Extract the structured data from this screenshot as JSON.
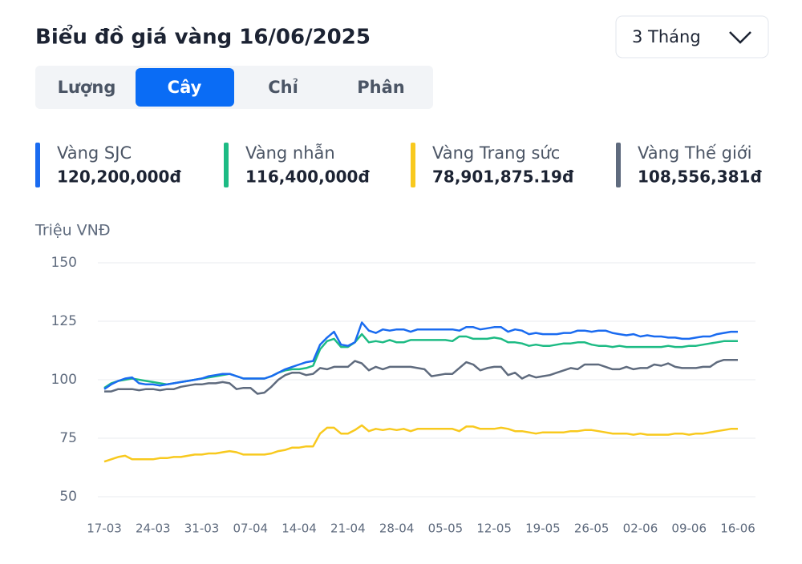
{
  "controls": {
    "period": "3 Tháng",
    "tabs": [
      "Lượng",
      "Cây",
      "Chỉ",
      "Phân"
    ]
  },
  "chart_data": {
    "type": "line",
    "title": "Biểu đồ giá vàng 16/06/2025",
    "y_label": "Triệu VNĐ",
    "ylim": [
      50,
      150
    ],
    "yticks": [
      50,
      75,
      100,
      125,
      150
    ],
    "grid": true,
    "categories": [
      "17-03",
      null,
      null,
      null,
      null,
      null,
      null,
      "24-03",
      null,
      null,
      null,
      null,
      null,
      null,
      "31-03",
      null,
      null,
      null,
      null,
      null,
      null,
      "07-04",
      null,
      null,
      null,
      null,
      null,
      null,
      "14-04",
      null,
      null,
      null,
      null,
      null,
      null,
      "21-04",
      null,
      null,
      null,
      null,
      null,
      null,
      "28-04",
      null,
      null,
      null,
      null,
      null,
      null,
      "05-05",
      null,
      null,
      null,
      null,
      null,
      null,
      "12-05",
      null,
      null,
      null,
      null,
      null,
      null,
      "19-05",
      null,
      null,
      null,
      null,
      null,
      null,
      "26-05",
      null,
      null,
      null,
      null,
      null,
      null,
      "02-06",
      null,
      null,
      null,
      null,
      null,
      null,
      "09-06",
      null,
      null,
      null,
      null,
      null,
      null,
      "16-06"
    ],
    "series": [
      {
        "name": "Vàng SJC",
        "price_label": "120,200,000đ",
        "color": "#1a6bf0",
        "values": [
          96,
          98,
          99.5,
          100.5,
          101,
          98.5,
          98,
          98,
          97.5,
          98,
          98.5,
          99,
          99.5,
          100,
          100.5,
          101.5,
          102,
          102.5,
          102.5,
          101.5,
          100.5,
          100.5,
          100.5,
          100.5,
          101.5,
          103,
          104.5,
          105.5,
          106.5,
          107.5,
          108,
          115,
          118,
          120.5,
          115,
          114.5,
          116,
          124.5,
          121,
          120,
          121.5,
          121,
          121.5,
          121.5,
          120.5,
          121.5,
          121.5,
          121.5,
          121.5,
          121.5,
          121.5,
          121,
          122.5,
          122.5,
          121.5,
          122,
          122.5,
          122.5,
          120.5,
          121.5,
          121,
          119.5,
          120,
          119.5,
          119.5,
          119.5,
          120,
          120,
          121,
          121,
          120.5,
          121,
          121,
          120,
          119.5,
          119,
          119.5,
          118.5,
          119,
          118.5,
          118.5,
          118,
          118,
          117.5,
          117.5,
          118,
          118.5,
          118.5,
          119.5,
          120,
          120.5,
          120.5
        ]
      },
      {
        "name": "Vàng nhẫn",
        "price_label": "116,400,000đ",
        "color": "#1dbb84",
        "values": [
          96.5,
          98.5,
          99.5,
          100,
          100.5,
          100,
          99.5,
          99,
          98.5,
          98,
          98.5,
          99,
          99.5,
          100,
          100.5,
          101,
          101.5,
          102,
          102.5,
          101.5,
          100.5,
          100.5,
          100.5,
          100.5,
          101.5,
          103,
          104,
          104.5,
          104.5,
          105,
          106,
          113,
          116.5,
          117.5,
          114,
          114,
          116,
          119.5,
          116,
          116.5,
          116,
          117,
          116,
          116,
          117,
          117,
          117,
          117,
          117,
          117,
          116.5,
          118.5,
          118.5,
          117.5,
          117.5,
          117.5,
          118,
          117.5,
          116,
          116,
          115.5,
          114.5,
          115,
          114.5,
          114.5,
          115,
          115.5,
          115.5,
          116,
          116,
          115,
          114.5,
          114.5,
          114,
          114.5,
          114,
          114,
          114,
          114,
          114,
          114,
          114.5,
          114,
          114,
          114.5,
          114.5,
          115,
          115.5,
          116,
          116.5,
          116.5,
          116.5
        ]
      },
      {
        "name": "Vàng Trang sức",
        "price_label": "78,901,875.19đ",
        "color": "#f8c91e",
        "values": [
          65,
          66,
          67,
          67.5,
          66,
          66,
          66,
          66,
          66.5,
          66.5,
          67,
          67,
          67.5,
          68,
          68,
          68.5,
          68.5,
          69,
          69.5,
          69,
          68,
          68,
          68,
          68,
          68.5,
          69.5,
          70,
          71,
          71,
          71.5,
          71.5,
          77,
          79.5,
          79.5,
          77,
          77,
          78.5,
          80.5,
          78,
          79,
          78.5,
          79,
          78.5,
          79,
          78,
          79,
          79,
          79,
          79,
          79,
          79,
          78,
          80,
          80,
          79,
          79,
          79,
          79.5,
          79,
          78,
          78,
          77.5,
          77,
          77.5,
          77.5,
          77.5,
          77.5,
          78,
          78,
          78.5,
          78.5,
          78,
          77.5,
          77,
          77,
          77,
          76.5,
          77,
          76.5,
          76.5,
          76.5,
          76.5,
          77,
          77,
          76.5,
          77,
          77,
          77.5,
          78,
          78.5,
          79,
          79
        ]
      },
      {
        "name": "Vàng Thế giới",
        "price_label": "108,556,381đ",
        "color": "#5f6b7e",
        "values": [
          95,
          95,
          96,
          96,
          96,
          95.5,
          96,
          96,
          95.5,
          96,
          96,
          97,
          97.5,
          98,
          98,
          98.5,
          98.5,
          99,
          98.5,
          96,
          96.5,
          96.5,
          94,
          94.5,
          97,
          100,
          102,
          103,
          103,
          102,
          102.5,
          105,
          104.5,
          105.5,
          105.5,
          105.5,
          108,
          107,
          104,
          105.5,
          104.5,
          105.5,
          105.5,
          105.5,
          105.5,
          105,
          104.5,
          101.5,
          102,
          102.5,
          102.5,
          105,
          107.5,
          106.5,
          104,
          105,
          105.5,
          105.5,
          102,
          103,
          100.5,
          102,
          101,
          101.5,
          102,
          103,
          104,
          105,
          104.5,
          106.5,
          106.5,
          106.5,
          105.5,
          104.5,
          104.5,
          105.5,
          104.5,
          105,
          105,
          106.5,
          106,
          107,
          105.5,
          105,
          105,
          105,
          105.5,
          105.5,
          107.5,
          108.5,
          108.5,
          108.5
        ]
      }
    ]
  }
}
